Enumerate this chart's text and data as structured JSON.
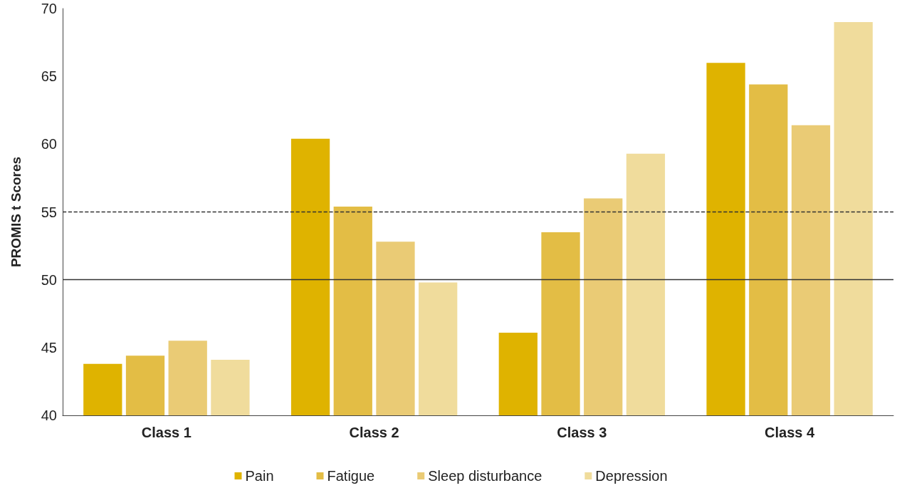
{
  "chart_data": {
    "type": "bar",
    "ylabel": "PROMIS t Scores",
    "categories": [
      "Class 1",
      "Class 2",
      "Class 3",
      "Class 4"
    ],
    "series": [
      {
        "name": "Pain",
        "color": "#dfb300",
        "values": [
          43.8,
          60.4,
          46.1,
          66.0
        ]
      },
      {
        "name": "Fatigue",
        "color": "#e3bd45",
        "values": [
          44.4,
          55.4,
          53.5,
          64.4
        ]
      },
      {
        "name": "Sleep disturbance",
        "color": "#eacb75",
        "values": [
          45.5,
          52.8,
          56.0,
          61.4
        ]
      },
      {
        "name": "Depression",
        "color": "#f0dc9c",
        "values": [
          44.1,
          49.8,
          59.3,
          69.0
        ]
      }
    ],
    "ylim": [
      40,
      70
    ],
    "yticks": [
      40,
      45,
      50,
      55,
      60,
      65,
      70
    ],
    "ref_lines": [
      {
        "axis": "y",
        "value": 50,
        "line_style": "solid",
        "color": "#333333"
      },
      {
        "axis": "y",
        "value": 55,
        "line_style": "dashed",
        "color": "#333333"
      }
    ],
    "grid": false,
    "legend": "bottom"
  }
}
